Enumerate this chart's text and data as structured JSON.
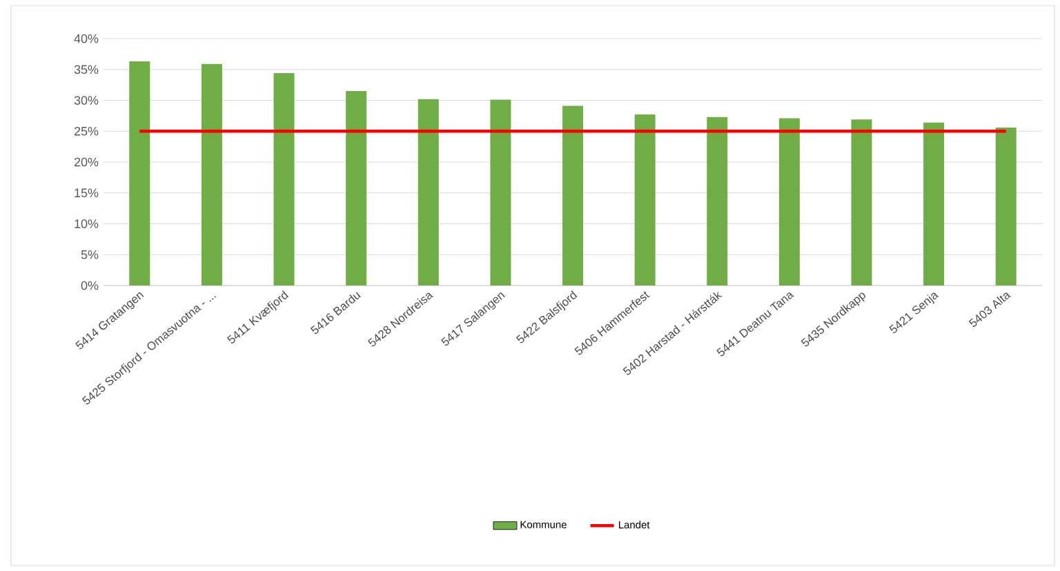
{
  "chart_data": {
    "type": "bar",
    "categories": [
      "5414 Gratangen",
      "5425 Storfjord - Omasvuotna - ...",
      "5411 Kvæfjord",
      "5416 Bardu",
      "5428 Nordreisa",
      "5417 Salangen",
      "5422 Balsfjord",
      "5406 Hammerfest",
      "5402 Harstad - Hárstták",
      "5441 Deatnu Tana",
      "5435 Nordkapp",
      "5421 Senja",
      "5403 Alta"
    ],
    "series": [
      {
        "name": "Kommune",
        "color": "#70ad47",
        "values": [
          36.3,
          35.9,
          34.4,
          31.5,
          30.2,
          30.1,
          29.1,
          27.7,
          27.3,
          27.1,
          26.9,
          26.4,
          25.6
        ]
      },
      {
        "name": "Landet",
        "type": "line",
        "color": "#ff0000",
        "values": [
          25,
          25,
          25,
          25,
          25,
          25,
          25,
          25,
          25,
          25,
          25,
          25,
          25
        ]
      }
    ],
    "ylim": [
      0,
      40
    ],
    "yticks": [
      {
        "value": 0,
        "label": "0%"
      },
      {
        "value": 5,
        "label": "5%"
      },
      {
        "value": 10,
        "label": "10%"
      },
      {
        "value": 15,
        "label": "15%"
      },
      {
        "value": 20,
        "label": "20%"
      },
      {
        "value": 25,
        "label": "25%"
      },
      {
        "value": 30,
        "label": "30%"
      },
      {
        "value": 35,
        "label": "35%"
      },
      {
        "value": 40,
        "label": "40%"
      }
    ],
    "grid": "y",
    "legend": "bottom"
  }
}
